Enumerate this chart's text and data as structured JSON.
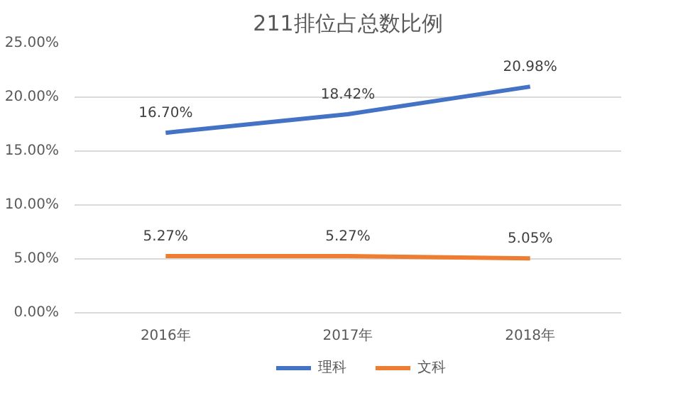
{
  "chart_data": {
    "type": "line",
    "title": "211排位占总数比例",
    "categories": [
      "2016年",
      "2017年",
      "2018年"
    ],
    "series": [
      {
        "name": "理科",
        "color": "#4472c4",
        "values": [
          16.7,
          18.42,
          20.98
        ],
        "value_labels": [
          "16.70%",
          "18.42%",
          "20.98%"
        ]
      },
      {
        "name": "文科",
        "color": "#ed7d31",
        "values": [
          5.27,
          5.27,
          5.05
        ],
        "value_labels": [
          "5.27%",
          "5.27%",
          "5.05%"
        ]
      }
    ],
    "ylim": [
      0,
      25
    ],
    "yticks": [
      {
        "value": 0,
        "label": "0.00%"
      },
      {
        "value": 5,
        "label": "5.00%"
      },
      {
        "value": 10,
        "label": "10.00%"
      },
      {
        "value": 15,
        "label": "15.00%"
      },
      {
        "value": 20,
        "label": "20.00%"
      },
      {
        "value": 25,
        "label": "25.00%"
      }
    ],
    "grid": "y",
    "legend": "bottom",
    "marker": "none",
    "line_style": "solid"
  }
}
